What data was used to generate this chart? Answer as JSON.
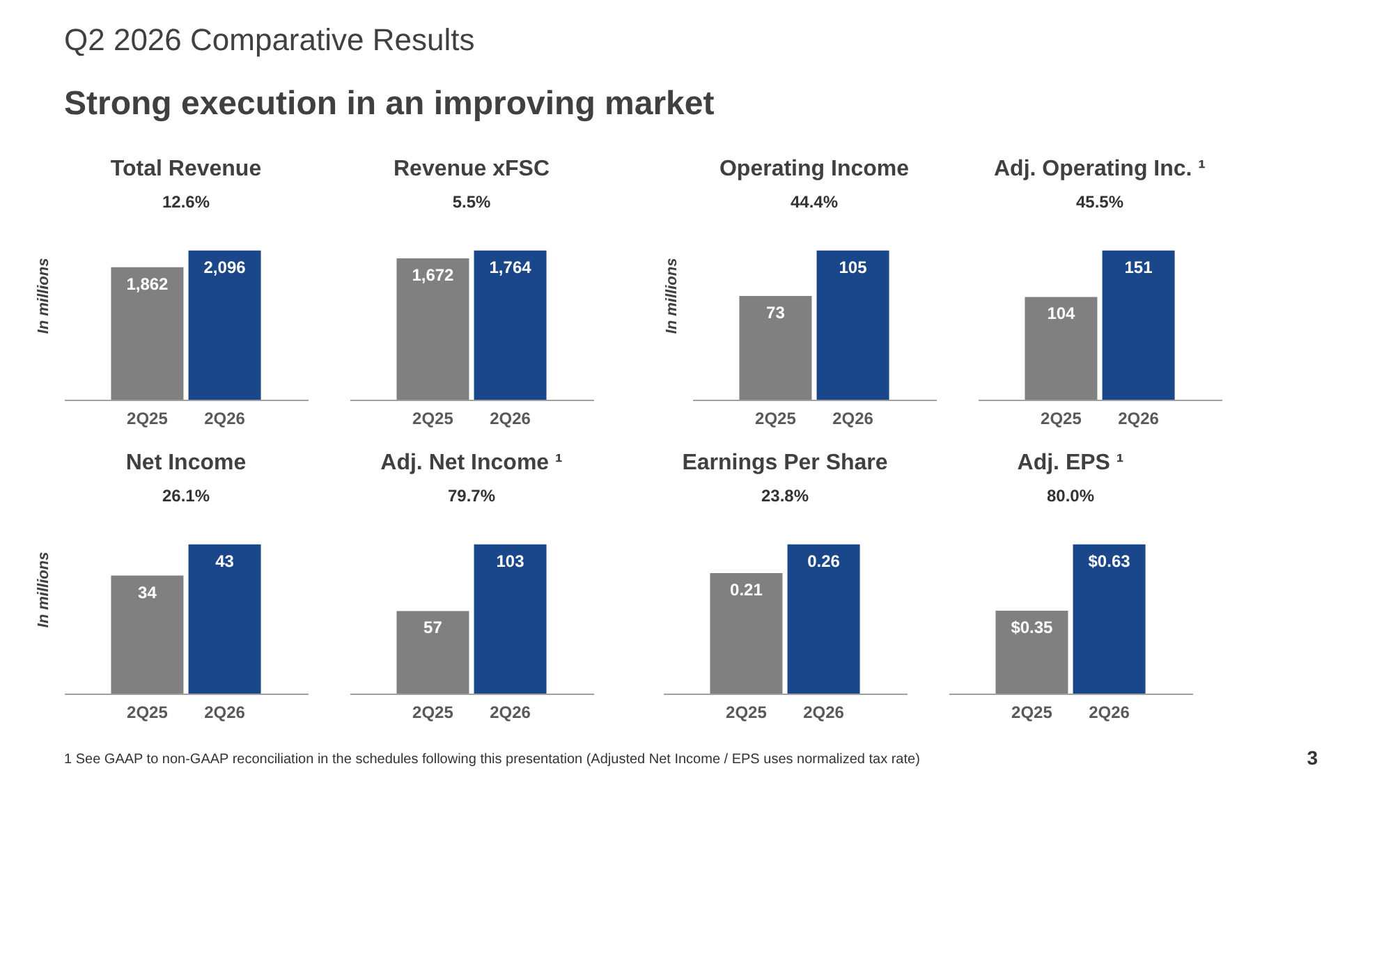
{
  "chart_data": [
    {
      "type": "other",
      "title": "Q2 2026 Comparative Results",
      "subtitle": "Strong execution in an improving market"
    },
    {
      "type": "bar",
      "title": "Total Revenue",
      "ylabel": "In millions",
      "tick_labels": "x",
      "annotations": [
        "12.6%"
      ],
      "categories": [
        "2Q25",
        "2Q26"
      ],
      "values": [
        1862,
        2096
      ],
      "value_labels": [
        "1,862",
        "2,096"
      ],
      "colors": [
        "#808080",
        "#1a468a"
      ]
    },
    {
      "type": "bar",
      "title": "Revenue xFSC",
      "tick_labels": "x",
      "annotations": [
        "5.5%"
      ],
      "categories": [
        "2Q25",
        "2Q26"
      ],
      "values": [
        1672,
        1764
      ],
      "value_labels": [
        "1,672",
        "1,764"
      ],
      "colors": [
        "#808080",
        "#1a468a"
      ]
    },
    {
      "type": "bar",
      "title": "Operating Income",
      "ylabel": "In millions",
      "tick_labels": "x",
      "annotations": [
        "44.4%"
      ],
      "categories": [
        "2Q25",
        "2Q26"
      ],
      "values": [
        73,
        105
      ],
      "value_labels": [
        "73",
        "105"
      ],
      "colors": [
        "#808080",
        "#1a468a"
      ]
    },
    {
      "type": "bar",
      "title": "Adj. Operating Inc. ¹",
      "tick_labels": "x",
      "annotations": [
        "45.5%"
      ],
      "categories": [
        "2Q25",
        "2Q26"
      ],
      "values": [
        104,
        151
      ],
      "value_labels": [
        "104",
        "151"
      ],
      "colors": [
        "#808080",
        "#1a468a"
      ]
    },
    {
      "type": "bar",
      "title": "Net Income",
      "ylabel": "In millions",
      "tick_labels": "x",
      "annotations": [
        "26.1%"
      ],
      "categories": [
        "2Q25",
        "2Q26"
      ],
      "values": [
        34,
        43
      ],
      "value_labels": [
        "34",
        "43"
      ],
      "colors": [
        "#808080",
        "#1a468a"
      ]
    },
    {
      "type": "bar",
      "title": "Adj. Net Income ¹",
      "tick_labels": "x",
      "annotations": [
        "79.7%"
      ],
      "categories": [
        "2Q25",
        "2Q26"
      ],
      "values": [
        57,
        103
      ],
      "value_labels": [
        "57",
        "103"
      ],
      "colors": [
        "#808080",
        "#1a468a"
      ]
    },
    {
      "type": "bar",
      "title": "Earnings Per Share",
      "tick_labels": "x",
      "annotations": [
        "23.8%"
      ],
      "categories": [
        "2Q25",
        "2Q26"
      ],
      "values": [
        0.21,
        0.26
      ],
      "value_labels": [
        "0.21",
        "0.26"
      ],
      "colors": [
        "#808080",
        "#1a468a"
      ]
    },
    {
      "type": "bar",
      "title": "Adj. EPS ¹",
      "tick_labels": "x",
      "annotations": [
        "80.0%"
      ],
      "categories": [
        "2Q25",
        "2Q26"
      ],
      "values": [
        0.35,
        0.63
      ],
      "value_labels": [
        "$0.35",
        "$0.63"
      ],
      "colors": [
        "#808080",
        "#1a468a"
      ]
    },
    {
      "type": "other",
      "annotations": [
        "1  See GAAP to non-GAAP reconciliation in the schedules following this presentation (Adjusted Net Income / EPS uses normalized tax rate)",
        "3"
      ]
    }
  ]
}
